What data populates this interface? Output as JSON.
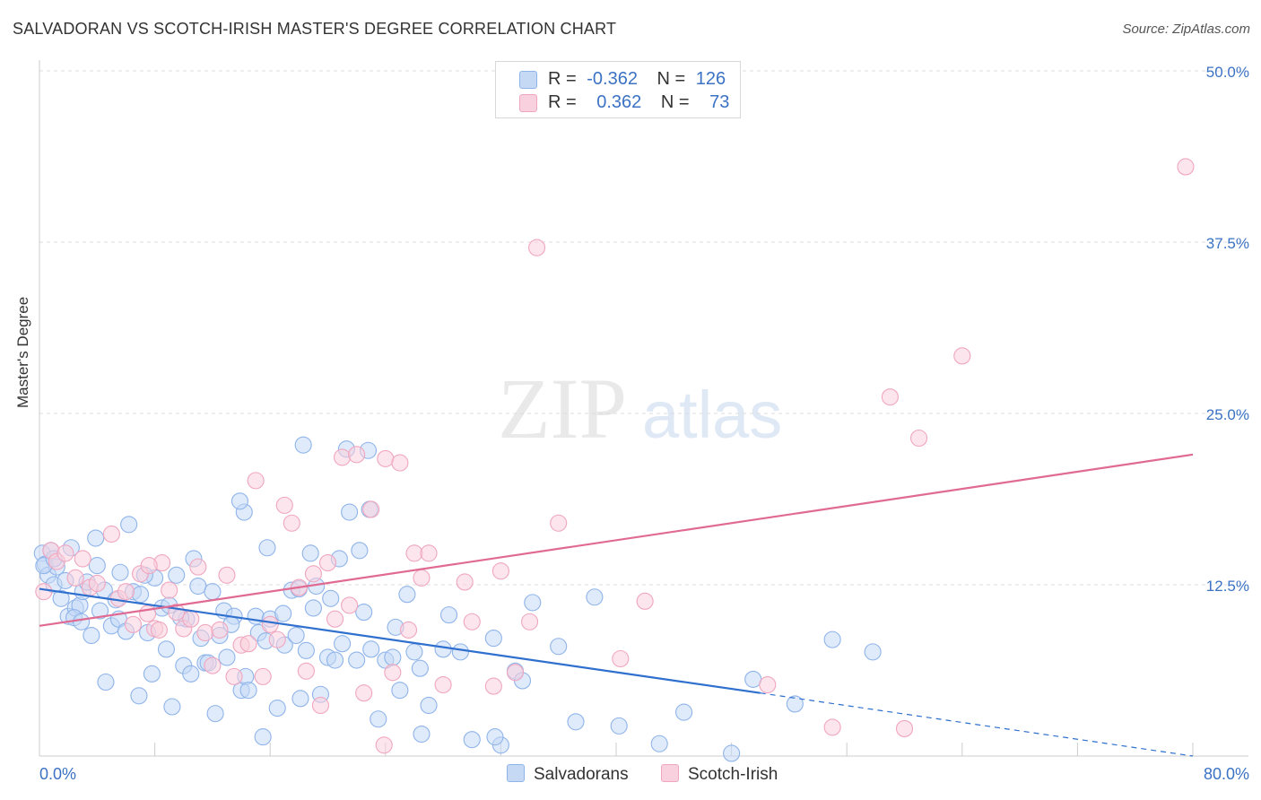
{
  "title": "SALVADORAN VS SCOTCH-IRISH MASTER'S DEGREE CORRELATION CHART",
  "source": "Source: ZipAtlas.com",
  "watermark": {
    "zip": "ZIP",
    "atlas": "atlas"
  },
  "legend": {
    "r_label": "R =",
    "n_label": "N =",
    "series": [
      {
        "name": "Salvadorans",
        "r": "-0.362",
        "n": "126",
        "color": "#8fb4ea",
        "fill": "#c5d9f5",
        "line": "#2f6fce"
      },
      {
        "name": "Scotch-Irish",
        "r": "0.362",
        "n": "73",
        "color": "#f0a6bf",
        "fill": "#f9d0dd",
        "line": "#e06a92"
      }
    ]
  },
  "colors": {
    "axis_label": "#3b72c4",
    "grid": "#dddddd",
    "text": "#333333"
  },
  "chart_data": {
    "type": "scatter",
    "title": "SALVADORAN VS SCOTCH-IRISH MASTER'S DEGREE CORRELATION CHART",
    "xlabel": "",
    "ylabel": "Master's Degree",
    "xlim": [
      0,
      80
    ],
    "ylim": [
      0,
      50
    ],
    "x_tick_labels": [
      "0.0%",
      "80.0%"
    ],
    "y_ticks": [
      12.5,
      25.0,
      37.5,
      50.0
    ],
    "y_tick_labels": [
      "12.5%",
      "25.0%",
      "37.5%",
      "50.0%"
    ],
    "series": [
      {
        "name": "Salvadorans",
        "trend": {
          "x0": 0,
          "y0": 12.2,
          "x1": 50,
          "y1": 4.6,
          "dash_to_x": 80,
          "dash_to_y": 0
        },
        "points": [
          [
            0.2,
            14.8
          ],
          [
            0.4,
            14.0
          ],
          [
            0.6,
            13.2
          ],
          [
            0.8,
            15.0
          ],
          [
            1.0,
            12.5
          ],
          [
            1.2,
            13.8
          ],
          [
            1.5,
            11.5
          ],
          [
            1.8,
            12.8
          ],
          [
            2.0,
            10.2
          ],
          [
            2.2,
            15.2
          ],
          [
            2.5,
            10.8
          ],
          [
            2.8,
            11.0
          ],
          [
            3.0,
            12.0
          ],
          [
            3.3,
            12.7
          ],
          [
            3.6,
            8.8
          ],
          [
            4.0,
            13.9
          ],
          [
            4.2,
            10.6
          ],
          [
            4.5,
            12.1
          ],
          [
            5.0,
            9.5
          ],
          [
            5.3,
            11.4
          ],
          [
            5.5,
            10.0
          ],
          [
            6.0,
            9.1
          ],
          [
            6.5,
            12.0
          ],
          [
            7.0,
            11.8
          ],
          [
            7.5,
            9.0
          ],
          [
            7.8,
            6.0
          ],
          [
            8.0,
            13.0
          ],
          [
            8.5,
            10.8
          ],
          [
            9.0,
            11.0
          ],
          [
            9.2,
            3.6
          ],
          [
            9.5,
            13.2
          ],
          [
            10.0,
            6.6
          ],
          [
            10.2,
            10.0
          ],
          [
            10.5,
            6.0
          ],
          [
            11.0,
            12.4
          ],
          [
            11.2,
            8.6
          ],
          [
            11.5,
            6.8
          ],
          [
            12.0,
            12.0
          ],
          [
            12.2,
            3.1
          ],
          [
            12.5,
            8.8
          ],
          [
            12.8,
            10.6
          ],
          [
            13.0,
            7.2
          ],
          [
            13.5,
            10.2
          ],
          [
            14.0,
            4.8
          ],
          [
            14.3,
            5.8
          ],
          [
            14.5,
            4.8
          ],
          [
            15.0,
            10.2
          ],
          [
            15.2,
            9.0
          ],
          [
            15.5,
            1.4
          ],
          [
            15.8,
            15.2
          ],
          [
            16.0,
            10.0
          ],
          [
            16.5,
            3.5
          ],
          [
            17.0,
            8.1
          ],
          [
            17.5,
            12.1
          ],
          [
            18.0,
            12.2
          ],
          [
            18.3,
            22.7
          ],
          [
            18.5,
            7.7
          ],
          [
            18.8,
            14.8
          ],
          [
            19.0,
            10.8
          ],
          [
            19.5,
            4.5
          ],
          [
            20.0,
            7.2
          ],
          [
            20.2,
            11.5
          ],
          [
            20.5,
            7.0
          ],
          [
            21.0,
            8.2
          ],
          [
            21.5,
            17.8
          ],
          [
            22.0,
            7.0
          ],
          [
            22.2,
            15.0
          ],
          [
            22.5,
            10.5
          ],
          [
            23.0,
            7.8
          ],
          [
            23.5,
            2.7
          ],
          [
            24.0,
            7.0
          ],
          [
            24.5,
            7.2
          ],
          [
            25.0,
            4.8
          ],
          [
            25.5,
            11.8
          ],
          [
            26.0,
            7.6
          ],
          [
            26.5,
            1.6
          ],
          [
            27.0,
            3.7
          ],
          [
            28.0,
            7.8
          ],
          [
            30.0,
            1.2
          ],
          [
            32.0,
            0.8
          ],
          [
            33.0,
            6.2
          ],
          [
            33.5,
            5.5
          ],
          [
            36.0,
            8.0
          ],
          [
            14.2,
            17.8
          ],
          [
            13.9,
            18.6
          ],
          [
            22.8,
            22.3
          ],
          [
            21.3,
            22.4
          ],
          [
            9.8,
            10.1
          ],
          [
            6.2,
            16.9
          ],
          [
            0.3,
            13.9
          ],
          [
            1.0,
            14.4
          ],
          [
            2.4,
            10.1
          ],
          [
            3.9,
            15.9
          ],
          [
            5.6,
            13.4
          ],
          [
            7.3,
            13.2
          ],
          [
            8.8,
            7.8
          ],
          [
            11.7,
            6.8
          ],
          [
            13.3,
            9.6
          ],
          [
            15.7,
            8.4
          ],
          [
            16.9,
            10.4
          ],
          [
            17.8,
            8.8
          ],
          [
            19.2,
            12.4
          ],
          [
            20.8,
            14.4
          ],
          [
            22.9,
            18.0
          ],
          [
            24.7,
            9.4
          ],
          [
            26.4,
            6.4
          ],
          [
            29.2,
            7.6
          ],
          [
            31.5,
            8.6
          ],
          [
            34.2,
            11.2
          ],
          [
            37.2,
            2.5
          ],
          [
            38.5,
            11.6
          ],
          [
            40.2,
            2.2
          ],
          [
            43.0,
            0.9
          ],
          [
            44.7,
            3.2
          ],
          [
            49.5,
            5.6
          ],
          [
            48.0,
            0.2
          ],
          [
            52.4,
            3.8
          ],
          [
            55.0,
            8.5
          ],
          [
            57.8,
            7.6
          ],
          [
            31.6,
            1.4
          ],
          [
            4.6,
            5.4
          ],
          [
            2.9,
            9.8
          ],
          [
            6.9,
            4.4
          ],
          [
            10.7,
            14.4
          ],
          [
            18.1,
            4.2
          ],
          [
            28.4,
            10.3
          ]
        ]
      },
      {
        "name": "Scotch-Irish",
        "trend": {
          "x0": 0,
          "y0": 9.5,
          "x1": 80,
          "y1": 22.0
        },
        "points": [
          [
            0.3,
            12.0
          ],
          [
            0.8,
            15.0
          ],
          [
            1.2,
            14.2
          ],
          [
            1.8,
            14.8
          ],
          [
            2.5,
            13.0
          ],
          [
            3.0,
            14.4
          ],
          [
            3.5,
            12.3
          ],
          [
            4.0,
            12.6
          ],
          [
            5.0,
            16.2
          ],
          [
            5.5,
            11.5
          ],
          [
            6.0,
            12.0
          ],
          [
            6.5,
            9.6
          ],
          [
            7.0,
            13.3
          ],
          [
            7.5,
            10.4
          ],
          [
            8.0,
            9.3
          ],
          [
            8.5,
            14.1
          ],
          [
            9.0,
            12.1
          ],
          [
            9.5,
            10.5
          ],
          [
            10.0,
            9.3
          ],
          [
            10.5,
            10.0
          ],
          [
            11.0,
            13.8
          ],
          [
            11.5,
            9.0
          ],
          [
            12.0,
            6.6
          ],
          [
            12.5,
            9.2
          ],
          [
            13.0,
            13.2
          ],
          [
            13.5,
            5.8
          ],
          [
            14.0,
            8.1
          ],
          [
            14.5,
            8.2
          ],
          [
            15.0,
            20.1
          ],
          [
            15.5,
            5.8
          ],
          [
            16.0,
            9.6
          ],
          [
            16.5,
            8.5
          ],
          [
            17.0,
            18.3
          ],
          [
            17.5,
            17.0
          ],
          [
            18.0,
            12.3
          ],
          [
            18.5,
            6.2
          ],
          [
            19.0,
            13.3
          ],
          [
            19.5,
            3.7
          ],
          [
            20.0,
            14.1
          ],
          [
            20.5,
            10.0
          ],
          [
            21.0,
            21.8
          ],
          [
            21.5,
            11.0
          ],
          [
            22.0,
            22.0
          ],
          [
            22.5,
            4.6
          ],
          [
            23.0,
            18.0
          ],
          [
            24.0,
            21.7
          ],
          [
            24.5,
            6.1
          ],
          [
            25.0,
            21.4
          ],
          [
            26.0,
            14.8
          ],
          [
            26.5,
            13.0
          ],
          [
            27.0,
            14.8
          ],
          [
            28.0,
            5.2
          ],
          [
            29.5,
            12.7
          ],
          [
            30.0,
            9.8
          ],
          [
            31.5,
            5.1
          ],
          [
            32.0,
            13.5
          ],
          [
            33.0,
            6.1
          ],
          [
            34.0,
            9.8
          ],
          [
            36.0,
            17.0
          ],
          [
            42.0,
            11.3
          ],
          [
            50.5,
            5.2
          ],
          [
            55.0,
            2.1
          ],
          [
            59.0,
            26.2
          ],
          [
            60.0,
            2.0
          ],
          [
            61.0,
            23.2
          ],
          [
            64.0,
            29.2
          ],
          [
            79.5,
            43.0
          ],
          [
            34.5,
            37.1
          ],
          [
            23.9,
            0.8
          ],
          [
            25.6,
            9.2
          ],
          [
            8.3,
            9.2
          ],
          [
            7.6,
            13.9
          ],
          [
            40.3,
            7.1
          ]
        ]
      }
    ]
  }
}
